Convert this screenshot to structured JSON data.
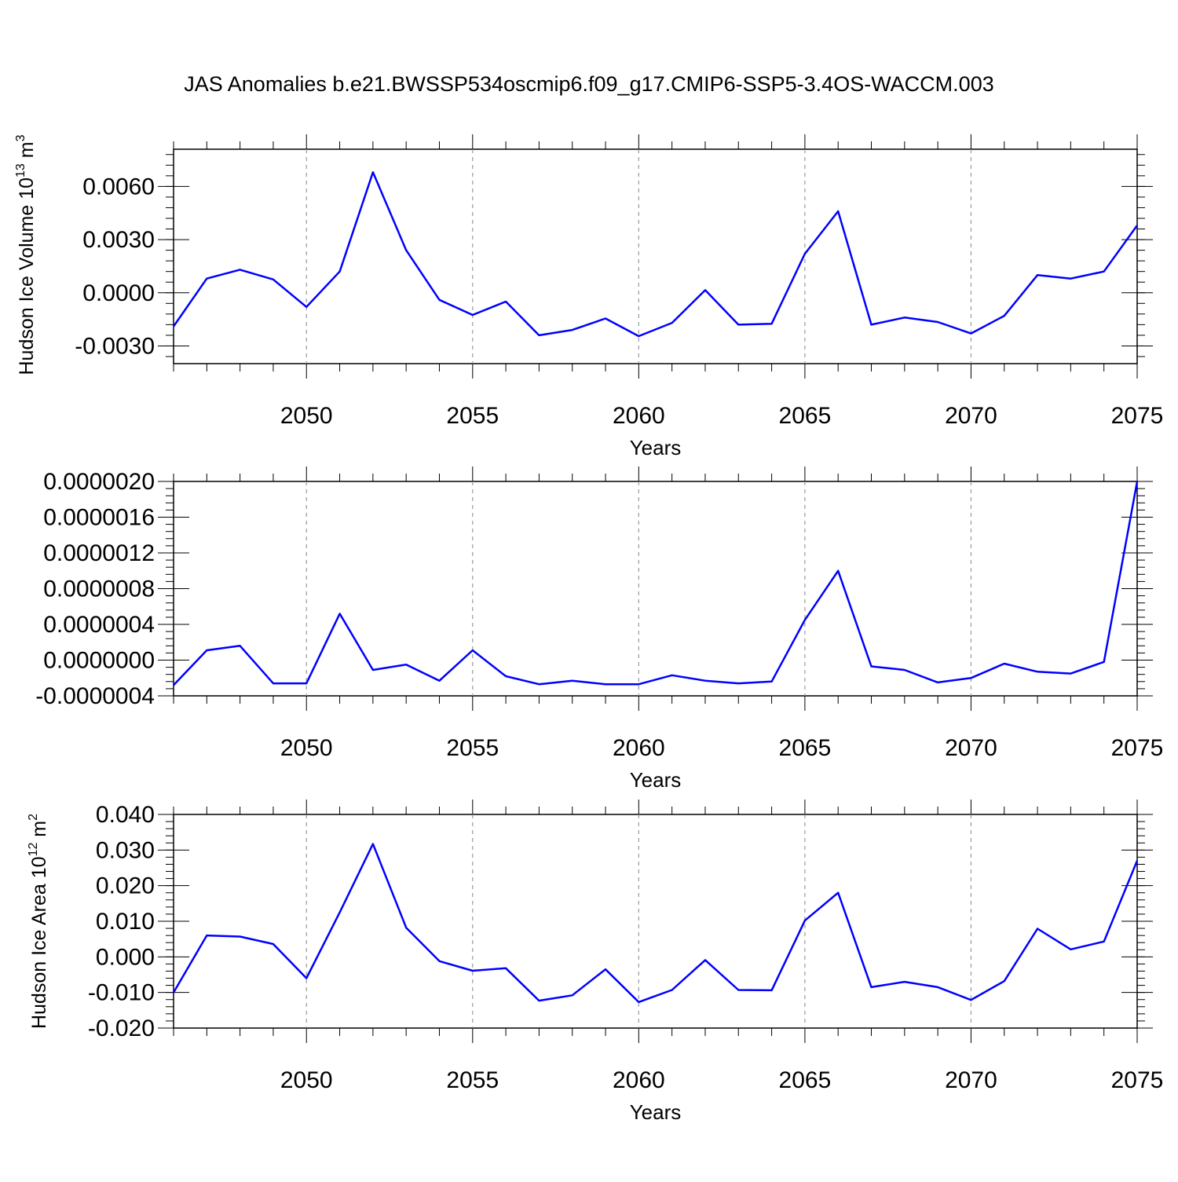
{
  "title": "JAS Anomalies b.e21.BWSSP534oscmip6.f09_g17.CMIP6-SSP5-3.4OS-WACCM.003",
  "chart_data": [
    {
      "type": "line",
      "title": "JAS Anomalies b.e21.BWSSP534oscmip6.f09_g17.CMIP6-SSP5-3.4OS-WACCM.003",
      "xlabel": "Years",
      "ylabel": "Hudson Ice Volume 10",
      "ylabel_sup": "13",
      "ylabel_unit": "m",
      "ylabel_unit_sup": "3",
      "xlim": [
        2046,
        2075
      ],
      "ylim": [
        -0.004,
        0.0081
      ],
      "xticks": [
        2050,
        2055,
        2060,
        2065,
        2070,
        2075
      ],
      "xtick_labels": [
        "2050",
        "2055",
        "2060",
        "2065",
        "2070",
        "2075"
      ],
      "yticks": [
        -0.003,
        0.0,
        0.003,
        0.006
      ],
      "ytick_labels": [
        "-0.0030",
        "0.0000",
        "0.0030",
        "0.0060"
      ],
      "x": [
        2046,
        2047,
        2048,
        2049,
        2050,
        2051,
        2052,
        2053,
        2054,
        2055,
        2056,
        2057,
        2058,
        2059,
        2060,
        2061,
        2062,
        2063,
        2064,
        2065,
        2066,
        2067,
        2068,
        2069,
        2070,
        2071,
        2072,
        2073,
        2074,
        2075
      ],
      "series": [
        {
          "name": "Hudson Ice Volume",
          "color": "#0000ff",
          "values": [
            -0.0019,
            0.0008,
            0.0013,
            0.00075,
            -0.0008,
            0.0012,
            0.0068,
            0.0024,
            -0.0004,
            -0.00125,
            -0.0005,
            -0.0024,
            -0.0021,
            -0.00145,
            -0.00245,
            -0.0017,
            0.00015,
            -0.0018,
            -0.00175,
            0.0022,
            0.0046,
            -0.0018,
            -0.0014,
            -0.00165,
            -0.0023,
            -0.0013,
            0.001,
            0.0008,
            0.0012,
            0.0038
          ]
        }
      ]
    },
    {
      "type": "line",
      "xlabel": "Years",
      "ylabel": "",
      "xlim": [
        2046,
        2075
      ],
      "ylim": [
        -4e-07,
        2e-06
      ],
      "xticks": [
        2050,
        2055,
        2060,
        2065,
        2070,
        2075
      ],
      "xtick_labels": [
        "2050",
        "2055",
        "2060",
        "2065",
        "2070",
        "2075"
      ],
      "yticks": [
        -4e-07,
        0.0,
        4e-07,
        8e-07,
        1.2e-06,
        1.6e-06,
        2e-06
      ],
      "ytick_labels": [
        "-0.0000004",
        "0.0000000",
        "0.0000004",
        "0.0000008",
        "0.0000012",
        "0.0000016",
        "0.0000020"
      ],
      "x": [
        2046,
        2047,
        2048,
        2049,
        2050,
        2051,
        2052,
        2053,
        2054,
        2055,
        2056,
        2057,
        2058,
        2059,
        2060,
        2061,
        2062,
        2063,
        2064,
        2065,
        2066,
        2067,
        2068,
        2069,
        2070,
        2071,
        2072,
        2073,
        2074,
        2075
      ],
      "series": [
        {
          "name": "series",
          "color": "#0000ff",
          "values": [
            -2.8e-07,
            1.1e-07,
            1.6e-07,
            -2.6e-07,
            -2.6e-07,
            5.2e-07,
            -1.1e-07,
            -5e-08,
            -2.3e-07,
            1.1e-07,
            -1.8e-07,
            -2.7e-07,
            -2.3e-07,
            -2.7e-07,
            -2.7e-07,
            -1.7e-07,
            -2.3e-07,
            -2.6e-07,
            -2.4e-07,
            4.5e-07,
            1e-06,
            -7e-08,
            -1.1e-07,
            -2.5e-07,
            -2e-07,
            -4e-08,
            -1.3e-07,
            -1.5e-07,
            -2e-08,
            2e-06
          ]
        }
      ]
    },
    {
      "type": "line",
      "xlabel": "Years",
      "ylabel": "Hudson Ice Area 10",
      "ylabel_sup": "12",
      "ylabel_unit": "m",
      "ylabel_unit_sup": "2",
      "xlim": [
        2046,
        2075
      ],
      "ylim": [
        -0.02,
        0.04
      ],
      "xticks": [
        2050,
        2055,
        2060,
        2065,
        2070,
        2075
      ],
      "xtick_labels": [
        "2050",
        "2055",
        "2060",
        "2065",
        "2070",
        "2075"
      ],
      "yticks": [
        -0.02,
        -0.01,
        0.0,
        0.01,
        0.02,
        0.03,
        0.04
      ],
      "ytick_labels": [
        "-0.020",
        "-0.010",
        "0.000",
        "0.010",
        "0.020",
        "0.030",
        "0.040"
      ],
      "x": [
        2046,
        2047,
        2048,
        2049,
        2050,
        2051,
        2052,
        2053,
        2054,
        2055,
        2056,
        2057,
        2058,
        2059,
        2060,
        2061,
        2062,
        2063,
        2064,
        2065,
        2066,
        2067,
        2068,
        2069,
        2070,
        2071,
        2072,
        2073,
        2074,
        2075
      ],
      "series": [
        {
          "name": "Hudson Ice Area",
          "color": "#0000ff",
          "values": [
            -0.01,
            0.006,
            0.0057,
            0.0036,
            -0.006,
            0.0125,
            0.0317,
            0.0082,
            -0.0012,
            -0.0039,
            -0.0032,
            -0.0123,
            -0.0108,
            -0.0035,
            -0.0127,
            -0.0093,
            -0.0009,
            -0.0093,
            -0.0094,
            0.0102,
            0.018,
            -0.0085,
            -0.007,
            -0.0085,
            -0.0121,
            -0.0068,
            0.0079,
            0.0021,
            0.0043,
            0.027
          ]
        }
      ]
    }
  ]
}
